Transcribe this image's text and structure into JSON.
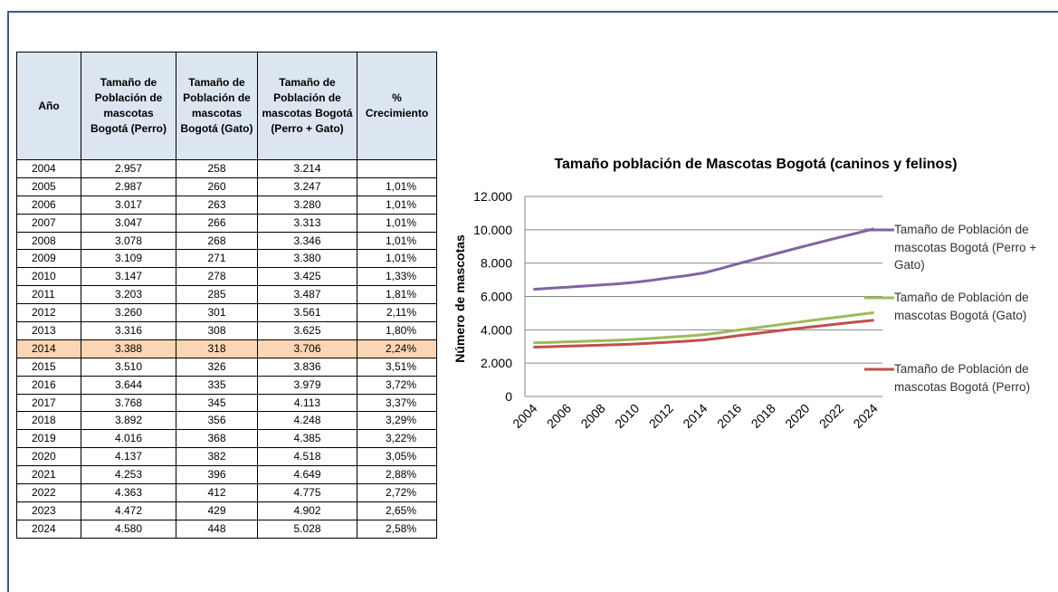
{
  "table": {
    "header": [
      "Año",
      "Tamaño de Población de mascotas Bogotá (Perro)",
      "Tamaño de Población de mascotas Bogotá (Gato)",
      "Tamaño de Población de mascotas Bogotá (Perro + Gato)",
      "% Crecimiento"
    ],
    "rows": [
      [
        "2004",
        "2.957",
        "258",
        "3.214",
        null
      ],
      [
        "2005",
        "2.987",
        "260",
        "3.247",
        "1,01%"
      ],
      [
        "2006",
        "3.017",
        "263",
        "3.280",
        "1,01%"
      ],
      [
        "2007",
        "3.047",
        "266",
        "3.313",
        "1,01%"
      ],
      [
        "2008",
        "3.078",
        "268",
        "3.346",
        "1,01%"
      ],
      [
        "2009",
        "3.109",
        "271",
        "3.380",
        "1,01%"
      ],
      [
        "2010",
        "3.147",
        "278",
        "3.425",
        "1,33%"
      ],
      [
        "2011",
        "3.203",
        "285",
        "3.487",
        "1,81%"
      ],
      [
        "2012",
        "3.260",
        "301",
        "3.561",
        "2,11%"
      ],
      [
        "2013",
        "3.316",
        "308",
        "3.625",
        "1,80%"
      ],
      [
        "2014",
        "3.388",
        "318",
        "3.706",
        "2,24%"
      ],
      [
        "2015",
        "3.510",
        "326",
        "3.836",
        "3,51%"
      ],
      [
        "2016",
        "3.644",
        "335",
        "3.979",
        "3,72%"
      ],
      [
        "2017",
        "3.768",
        "345",
        "4.113",
        "3,37%"
      ],
      [
        "2018",
        "3.892",
        "356",
        "4.248",
        "3,29%"
      ],
      [
        "2019",
        "4.016",
        "368",
        "4.385",
        "3,22%"
      ],
      [
        "2020",
        "4.137",
        "382",
        "4.518",
        "3,05%"
      ],
      [
        "2021",
        "4.253",
        "396",
        "4.649",
        "2,88%"
      ],
      [
        "2022",
        "4.363",
        "412",
        "4.775",
        "2,72%"
      ],
      [
        "2023",
        "4.472",
        "429",
        "4.902",
        "2,65%"
      ],
      [
        "2024",
        "4.580",
        "448",
        "5.028",
        "2,58%"
      ]
    ]
  },
  "chart_data": {
    "type": "line",
    "stacked": true,
    "title": "Tamaño población de Mascotas Bogotá (caninos y felinos)",
    "y_label": "Número de mascotas",
    "categories": [
      "2004",
      null,
      "2006",
      null,
      "2008",
      null,
      "2010",
      null,
      "2012",
      null,
      "2014",
      null,
      "2016",
      null,
      "2018",
      null,
      "2020",
      null,
      "2022",
      null,
      "2024"
    ],
    "series": [
      {
        "name": "Tamaño de Población de mascotas Bogotá (Perro)",
        "color": "#c0504d",
        "values": [
          2957,
          2987,
          3017,
          3047,
          3078,
          3109,
          3147,
          3203,
          3260,
          3316,
          3388,
          3510,
          3644,
          3768,
          3892,
          4016,
          4137,
          4253,
          4363,
          4472,
          4580
        ]
      },
      {
        "name": "Tamaño de Población de mascotas Bogotá (Gato)",
        "color": "#9bbb59",
        "values": [
          258,
          260,
          263,
          266,
          268,
          271,
          278,
          285,
          301,
          308,
          318,
          326,
          335,
          345,
          356,
          368,
          382,
          396,
          412,
          429,
          448
        ]
      },
      {
        "name": "Tamaño de Población de mascotas Bogotá (Perro + Gato)",
        "color": "#8064a2",
        "values": [
          3214,
          3247,
          3280,
          3313,
          3346,
          3380,
          3425,
          3487,
          3561,
          3625,
          3706,
          3836,
          3979,
          4113,
          4248,
          4385,
          4518,
          4649,
          4775,
          4902,
          5028
        ]
      }
    ],
    "ylim": [
      0,
      12000
    ],
    "yticks": [
      0,
      {
        "value": 2000,
        "label": "2.000"
      },
      {
        "value": 4000,
        "label": "4.000"
      },
      {
        "value": 6000,
        "label": "6.000"
      },
      {
        "value": 8000,
        "label": "8.000"
      },
      {
        "value": 10000,
        "label": "10.000"
      },
      {
        "value": 12000,
        "label": "12.000"
      }
    ],
    "grid": true,
    "legend": "right"
  }
}
